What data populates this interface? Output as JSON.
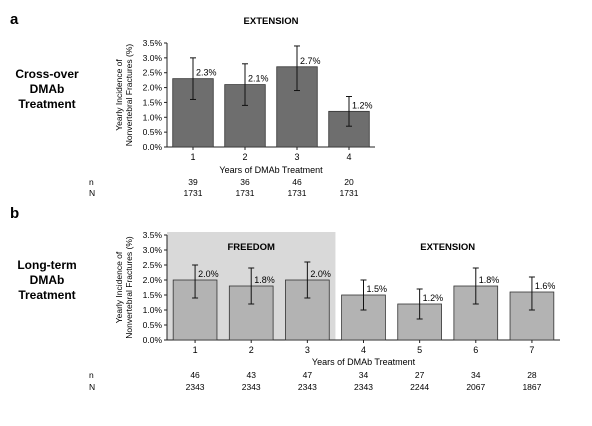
{
  "chart_data": [
    {
      "panel_letter": "a",
      "type": "bar",
      "row_label": [
        "Cross-over",
        "DMAb",
        "Treatment"
      ],
      "ylabel": [
        "Yearly Incidence of",
        "Nonvertebral Fractures (%)"
      ],
      "xlabel": "Years of DMAb Treatment",
      "ylim": [
        0,
        3.5
      ],
      "yticks": [
        0,
        0.5,
        1,
        1.5,
        2,
        2.5,
        3,
        3.5
      ],
      "ytick_labels": [
        "0.0%",
        "0.5%",
        "1.0%",
        "1.5%",
        "2.0%",
        "2.5%",
        "3.0%",
        "3.5%"
      ],
      "categories": [
        "1",
        "2",
        "3",
        "4"
      ],
      "values": [
        2.3,
        2.1,
        2.7,
        1.2
      ],
      "value_labels": [
        "2.3%",
        "2.1%",
        "2.7%",
        "1.2%"
      ],
      "error_low": [
        1.6,
        1.4,
        1.9,
        0.7
      ],
      "error_high": [
        3.0,
        2.8,
        3.4,
        1.7
      ],
      "bar_color": "#6e6e6e",
      "phases": [
        {
          "label": "EXTENSION",
          "years": [
            1,
            4
          ],
          "shaded": false
        }
      ],
      "n_row": {
        "label": "n",
        "values": [
          "39",
          "36",
          "46",
          "20"
        ]
      },
      "N_row": {
        "label": "N",
        "values": [
          "1731",
          "1731",
          "1731",
          "1731"
        ]
      },
      "grid": false,
      "legend": "none"
    },
    {
      "panel_letter": "b",
      "type": "bar",
      "row_label": [
        "Long-term",
        "DMAb",
        "Treatment"
      ],
      "ylabel": [
        "Yearly Incidence of",
        "Nonvertebral Fractures (%)"
      ],
      "xlabel": "Years of DMAb Treatment",
      "ylim": [
        0,
        3.5
      ],
      "yticks": [
        0,
        0.5,
        1,
        1.5,
        2,
        2.5,
        3,
        3.5
      ],
      "ytick_labels": [
        "0.0%",
        "0.5%",
        "1.0%",
        "1.5%",
        "2.0%",
        "2.5%",
        "3.0%",
        "3.5%"
      ],
      "categories": [
        "1",
        "2",
        "3",
        "4",
        "5",
        "6",
        "7"
      ],
      "values": [
        2.0,
        1.8,
        2.0,
        1.5,
        1.2,
        1.8,
        1.6
      ],
      "value_labels": [
        "2.0%",
        "1.8%",
        "2.0%",
        "1.5%",
        "1.2%",
        "1.8%",
        "1.6%"
      ],
      "error_low": [
        1.4,
        1.2,
        1.4,
        1.0,
        0.7,
        1.2,
        1.0
      ],
      "error_high": [
        2.5,
        2.4,
        2.6,
        2.0,
        1.7,
        2.4,
        2.1
      ],
      "bar_color": "#b3b3b3",
      "phase_shade_color": "#d9d9d9",
      "phases": [
        {
          "label": "FREEDOM",
          "years": [
            1,
            3
          ],
          "shaded": true
        },
        {
          "label": "EXTENSION",
          "years": [
            4,
            7
          ],
          "shaded": false
        }
      ],
      "n_row": {
        "label": "n",
        "values": [
          "46",
          "43",
          "47",
          "34",
          "27",
          "34",
          "28"
        ]
      },
      "N_row": {
        "label": "N",
        "values": [
          "2343",
          "2343",
          "2343",
          "2343",
          "2244",
          "2067",
          "1867"
        ]
      },
      "grid": false,
      "legend": "none"
    }
  ]
}
